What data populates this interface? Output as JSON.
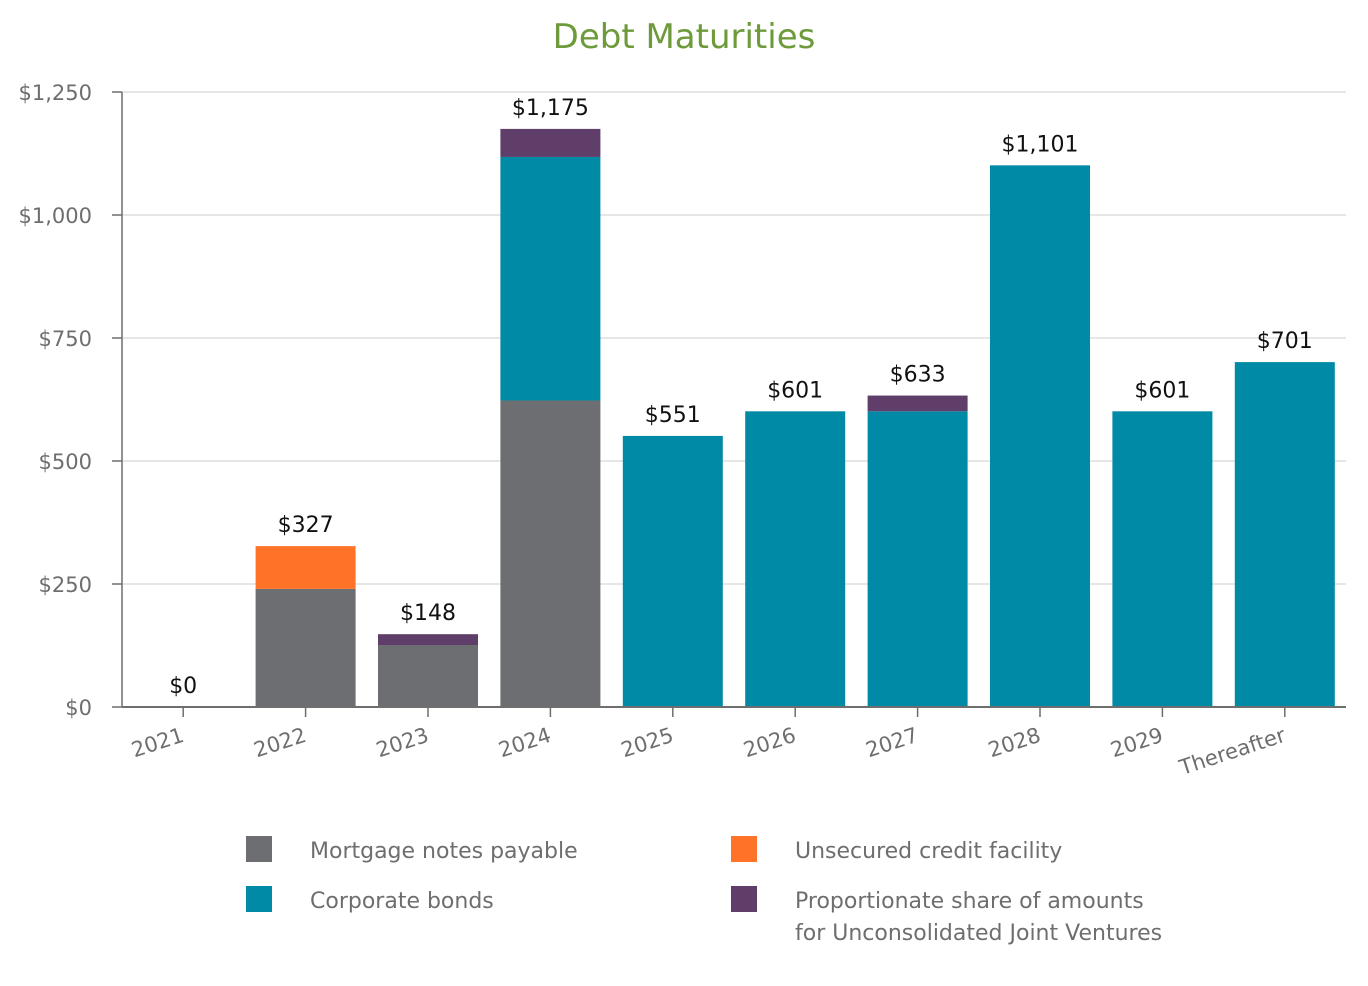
{
  "chart_data": {
    "type": "bar",
    "stacked": true,
    "title": "Debt Maturities",
    "xlabel": "",
    "ylabel": "",
    "ylim": [
      0,
      1250
    ],
    "yticks": [
      0,
      250,
      500,
      750,
      1000,
      1250
    ],
    "ytick_labels": [
      "$0",
      "$250",
      "$500",
      "$750",
      "$1,000",
      "$1,250"
    ],
    "categories": [
      "2021",
      "2022",
      "2023",
      "2024",
      "2025",
      "2026",
      "2027",
      "2028",
      "2029",
      "Thereafter"
    ],
    "series": [
      {
        "name": "Mortgage notes payable",
        "color": "#6d6e71",
        "values": [
          0,
          240,
          126,
          623,
          0,
          0,
          0,
          0,
          0,
          0
        ]
      },
      {
        "name": "Unsecured credit facility",
        "color": "#ff7328",
        "values": [
          0,
          87,
          0,
          0,
          0,
          0,
          0,
          0,
          0,
          0
        ]
      },
      {
        "name": "Corporate bonds",
        "color": "#008aa6",
        "values": [
          0,
          0,
          0,
          495,
          551,
          601,
          601,
          1101,
          601,
          701
        ]
      },
      {
        "name": "Proportionate share of amounts\nfor Unconsolidated Joint Ventures",
        "color": "#5f3e69",
        "values": [
          0,
          0,
          22,
          57,
          0,
          0,
          32,
          0,
          0,
          0
        ]
      }
    ],
    "totals": [
      0,
      327,
      148,
      1175,
      551,
      601,
      633,
      1101,
      601,
      701
    ],
    "total_labels": [
      "$0",
      "$327",
      "$148",
      "$1,175",
      "$551",
      "$601",
      "$633",
      "$1,101",
      "$601",
      "$701"
    ],
    "grid": true,
    "legend_position": "bottom"
  }
}
